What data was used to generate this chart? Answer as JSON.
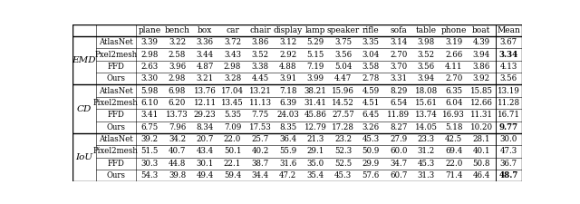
{
  "metrics": [
    "EMD",
    "CD",
    "IoU"
  ],
  "methods": [
    "AtlasNet",
    "Pxel2mesh",
    "FFD",
    "Ours"
  ],
  "methods_cd_iou": [
    "AtlasNet",
    "Pixel2mesh",
    "FFD",
    "Ours"
  ],
  "columns": [
    "plane",
    "bench",
    "box",
    "car",
    "chair",
    "display",
    "lamp",
    "speaker",
    "rifle",
    "sofa",
    "table",
    "phone",
    "boat",
    "Mean"
  ],
  "data": {
    "EMD": {
      "AtlasNet": [
        "3.39",
        "3.22",
        "3.36",
        "3.72",
        "3.86",
        "3.12",
        "5.29",
        "3.75",
        "3.35",
        "3.14",
        "3.98",
        "3.19",
        "4.39",
        "3.67"
      ],
      "Pxel2mesh": [
        "2.98",
        "2.58",
        "3.44",
        "3.43",
        "3.52",
        "2.92",
        "5.15",
        "3.56",
        "3.04",
        "2.70",
        "3.52",
        "2.66",
        "3.94",
        "3.34"
      ],
      "FFD": [
        "2.63",
        "3.96",
        "4.87",
        "2.98",
        "3.38",
        "4.88",
        "7.19",
        "5.04",
        "3.58",
        "3.70",
        "3.56",
        "4.11",
        "3.86",
        "4.13"
      ],
      "Ours": [
        "3.30",
        "2.98",
        "3.21",
        "3.28",
        "4.45",
        "3.91",
        "3.99",
        "4.47",
        "2.78",
        "3.31",
        "3.94",
        "2.70",
        "3.92",
        "3.56"
      ]
    },
    "CD": {
      "AtlasNet": [
        "5.98",
        "6.98",
        "13.76",
        "17.04",
        "13.21",
        "7.18",
        "38.21",
        "15.96",
        "4.59",
        "8.29",
        "18.08",
        "6.35",
        "15.85",
        "13.19"
      ],
      "Pixel2mesh": [
        "6.10",
        "6.20",
        "12.11",
        "13.45",
        "11.13",
        "6.39",
        "31.41",
        "14.52",
        "4.51",
        "6.54",
        "15.61",
        "6.04",
        "12.66",
        "11.28"
      ],
      "FFD": [
        "3.41",
        "13.73",
        "29.23",
        "5.35",
        "7.75",
        "24.03",
        "45.86",
        "27.57",
        "6.45",
        "11.89",
        "13.74",
        "16.93",
        "11.31",
        "16.71"
      ],
      "Ours": [
        "6.75",
        "7.96",
        "8.34",
        "7.09",
        "17.53",
        "8.35",
        "12.79",
        "17.28",
        "3.26",
        "8.27",
        "14.05",
        "5.18",
        "10.20",
        "9.77"
      ]
    },
    "IoU": {
      "AtlasNet": [
        "39.2",
        "34.2",
        "20.7",
        "22.0",
        "25.7",
        "36.4",
        "21.3",
        "23.2",
        "45.3",
        "27.9",
        "23.3",
        "42.5",
        "28.1",
        "30.0"
      ],
      "Pixel2mesh": [
        "51.5",
        "40.7",
        "43.4",
        "50.1",
        "40.2",
        "55.9",
        "29.1",
        "52.3",
        "50.9",
        "60.0",
        "31.2",
        "69.4",
        "40.1",
        "47.3"
      ],
      "FFD": [
        "30.3",
        "44.8",
        "30.1",
        "22.1",
        "38.7",
        "31.6",
        "35.0",
        "52.5",
        "29.9",
        "34.7",
        "45.3",
        "22.0",
        "50.8",
        "36.7"
      ],
      "Ours": [
        "54.3",
        "39.8",
        "49.4",
        "59.4",
        "34.4",
        "47.2",
        "35.4",
        "45.3",
        "57.6",
        "60.7",
        "31.3",
        "71.4",
        "46.4",
        "48.7"
      ]
    }
  },
  "bold": {
    "EMD_Pxel2mesh_Mean": true,
    "CD_Ours_Mean": true,
    "IoU_Ours_Mean": true
  }
}
